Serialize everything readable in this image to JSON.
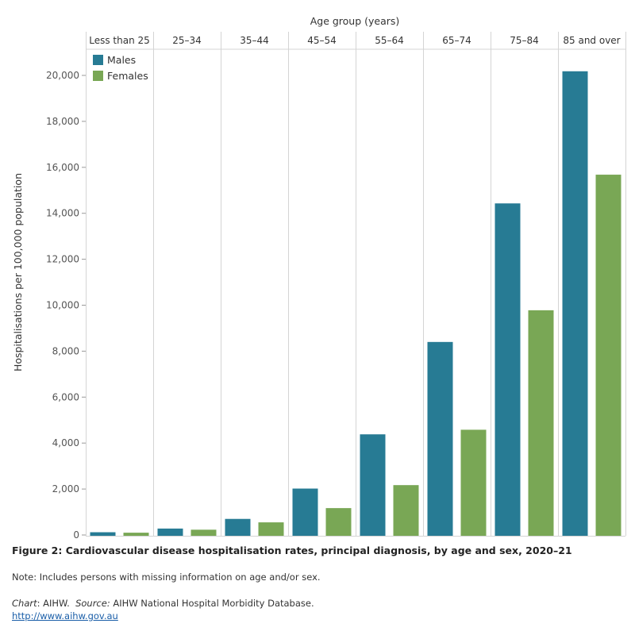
{
  "chart_data": {
    "type": "bar",
    "title": "Figure 2: Cardiovascular disease hospitalisation rates, principal diagnosis, by age and sex, 2020–21",
    "xlabel": "Age group (years)",
    "ylabel": "Hospitalisations per 100,000 population",
    "categories": [
      "Less than 25",
      "25–34",
      "35–44",
      "45–54",
      "55–64",
      "65–74",
      "75–84",
      "85 and over"
    ],
    "series": [
      {
        "name": "Males",
        "color": "#277b94",
        "values": [
          120,
          280,
          700,
          2020,
          4380,
          8400,
          14430,
          20180
        ]
      },
      {
        "name": "Females",
        "color": "#79a755",
        "values": [
          100,
          230,
          550,
          1170,
          2170,
          4580,
          9780,
          15680
        ]
      }
    ],
    "ylim": [
      0,
      21000
    ],
    "yticks": [
      0,
      2000,
      4000,
      6000,
      8000,
      10000,
      12000,
      14000,
      16000,
      18000,
      20000
    ],
    "ytick_labels": [
      "0",
      "2,000",
      "4,000",
      "6,000",
      "8,000",
      "10,000",
      "12,000",
      "14,000",
      "16,000",
      "18,000",
      "20,000"
    ],
    "legend_position": "top-left",
    "grid": false
  },
  "footer": {
    "note": "Note: Includes persons with missing information on age and/or sex.",
    "chart_label": "Chart",
    "chart_value": ": AIHW.",
    "source_label": "Source:",
    "source_value": "AIHW National Hospital Morbidity Database.",
    "url": "http://www.aihw.gov.au"
  }
}
